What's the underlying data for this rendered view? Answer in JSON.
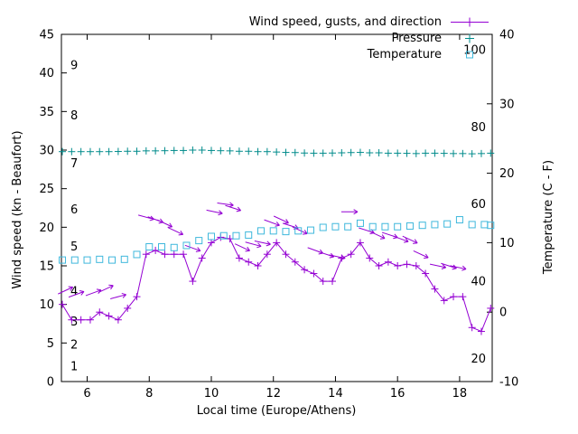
{
  "figure": {
    "background": "#ffffff",
    "frame_color": "#000000"
  },
  "chart_data": {
    "type": "line",
    "title": "",
    "x_axis": {
      "label": "Local time (Europe/Athens)",
      "range": [
        5.17,
        19.05
      ],
      "ticks": [
        6,
        8,
        10,
        12,
        14,
        16,
        18
      ]
    },
    "y_axis_left": {
      "label": "Wind speed (kn - Beaufort)",
      "range": [
        0,
        45
      ],
      "ticks": [
        0,
        5,
        10,
        15,
        20,
        25,
        30,
        35,
        40,
        45
      ]
    },
    "y_axis_right": {
      "label": "Temperature (C - F)",
      "range": [
        -10,
        40
      ],
      "ticks": [
        -10,
        0,
        10,
        20,
        30,
        40
      ]
    },
    "beaufort_scale_labels": [
      {
        "text": "1",
        "kn": 2
      },
      {
        "text": "2",
        "kn": 4.8
      },
      {
        "text": "3",
        "kn": 7.8
      },
      {
        "text": "4",
        "kn": 11.7
      },
      {
        "text": "5",
        "kn": 17.5
      },
      {
        "text": "6",
        "kn": 22.3
      },
      {
        "text": "7",
        "kn": 28.3
      },
      {
        "text": "8",
        "kn": 34.5
      },
      {
        "text": "9",
        "kn": 41
      }
    ],
    "fahrenheit_scale_labels": [
      {
        "text": "20",
        "f": 20
      },
      {
        "text": "40",
        "f": 40
      },
      {
        "text": "60",
        "f": 60
      },
      {
        "text": "80",
        "f": 80
      },
      {
        "text": "100",
        "f": 100
      }
    ],
    "legend": [
      {
        "label": "Wind speed, gusts, and direction",
        "series": "wind_speed",
        "glyph": "errorbar",
        "color": "#9400d3"
      },
      {
        "label": "Pressure",
        "series": "pressure",
        "glyph": "plus",
        "color": "#008b8b"
      },
      {
        "label": "Temperature",
        "series": "temperature",
        "glyph": "square",
        "color": "#3fb8dc"
      }
    ],
    "series": [
      {
        "name": "wind_speed",
        "axis": "left",
        "style": "line+plus",
        "color": "#9400d3",
        "points": [
          [
            5.2,
            10
          ],
          [
            5.5,
            8
          ],
          [
            5.8,
            8
          ],
          [
            6.1,
            8
          ],
          [
            6.4,
            9
          ],
          [
            6.7,
            8.5
          ],
          [
            7.0,
            8
          ],
          [
            7.3,
            9.5
          ],
          [
            7.6,
            11
          ],
          [
            7.9,
            16.5
          ],
          [
            8.2,
            17
          ],
          [
            8.5,
            16.5
          ],
          [
            8.8,
            16.5
          ],
          [
            9.1,
            16.5
          ],
          [
            9.4,
            13
          ],
          [
            9.7,
            16
          ],
          [
            10.0,
            18
          ],
          [
            10.3,
            18.7
          ],
          [
            10.6,
            18.5
          ],
          [
            10.9,
            16
          ],
          [
            11.2,
            15.5
          ],
          [
            11.5,
            15
          ],
          [
            11.8,
            16.5
          ],
          [
            12.1,
            18
          ],
          [
            12.4,
            16.5
          ],
          [
            12.7,
            15.5
          ],
          [
            13.0,
            14.5
          ],
          [
            13.3,
            14
          ],
          [
            13.6,
            13
          ],
          [
            13.9,
            13
          ],
          [
            14.2,
            16
          ],
          [
            14.5,
            16.5
          ],
          [
            14.8,
            18
          ],
          [
            15.1,
            16
          ],
          [
            15.4,
            15
          ],
          [
            15.7,
            15.5
          ],
          [
            16.0,
            15
          ],
          [
            16.3,
            15.2
          ],
          [
            16.6,
            15
          ],
          [
            16.9,
            14
          ],
          [
            17.2,
            12
          ],
          [
            17.5,
            10.5
          ],
          [
            17.8,
            11
          ],
          [
            18.1,
            11
          ],
          [
            18.4,
            7
          ],
          [
            18.7,
            6.5
          ],
          [
            19.0,
            9.5
          ]
        ]
      },
      {
        "name": "wind_gusts_direction",
        "axis": "left",
        "style": "arrow",
        "color": "#9400d3",
        "points": [
          [
            5.3,
            11.8,
            -25
          ],
          [
            5.65,
            11.3,
            -20
          ],
          [
            6.2,
            11.5,
            -20
          ],
          [
            6.6,
            12,
            -25
          ],
          [
            7.0,
            11,
            -15
          ],
          [
            7.9,
            21.3,
            15
          ],
          [
            8.2,
            21,
            20
          ],
          [
            8.5,
            20.5,
            25
          ],
          [
            8.85,
            19.5,
            25
          ],
          [
            9.4,
            17.3,
            20
          ],
          [
            10.1,
            22,
            12
          ],
          [
            10.45,
            23,
            8
          ],
          [
            10.7,
            22.5,
            18
          ],
          [
            11.0,
            17.4,
            25
          ],
          [
            11.35,
            17.8,
            15
          ],
          [
            11.65,
            18,
            12
          ],
          [
            11.95,
            20.6,
            20
          ],
          [
            12.25,
            21,
            25
          ],
          [
            12.55,
            20.2,
            18
          ],
          [
            12.85,
            19.6,
            25
          ],
          [
            13.35,
            17,
            20
          ],
          [
            13.7,
            16.5,
            18
          ],
          [
            14.05,
            16.2,
            12
          ],
          [
            14.45,
            22,
            0
          ],
          [
            15.0,
            19.6,
            18
          ],
          [
            15.35,
            19,
            25
          ],
          [
            15.75,
            19,
            18
          ],
          [
            16.1,
            18.5,
            20
          ],
          [
            16.4,
            18.4,
            25
          ],
          [
            16.75,
            16.5,
            25
          ],
          [
            17.3,
            15,
            12
          ],
          [
            17.65,
            15,
            18
          ],
          [
            17.95,
            14.8,
            12
          ]
        ]
      },
      {
        "name": "pressure",
        "axis": "left",
        "style": "plus",
        "color": "#008b8b",
        "points": [
          [
            5.2,
            29.8
          ],
          [
            5.5,
            29.8
          ],
          [
            5.8,
            29.8
          ],
          [
            6.1,
            29.8
          ],
          [
            6.4,
            29.8
          ],
          [
            6.7,
            29.8
          ],
          [
            7.0,
            29.82
          ],
          [
            7.3,
            29.85
          ],
          [
            7.6,
            29.85
          ],
          [
            7.9,
            29.9
          ],
          [
            8.2,
            29.9
          ],
          [
            8.5,
            29.92
          ],
          [
            8.8,
            29.95
          ],
          [
            9.1,
            29.95
          ],
          [
            9.4,
            30.0
          ],
          [
            9.7,
            30.0
          ],
          [
            10.0,
            29.95
          ],
          [
            10.3,
            29.92
          ],
          [
            10.6,
            29.9
          ],
          [
            10.9,
            29.85
          ],
          [
            11.2,
            29.85
          ],
          [
            11.5,
            29.8
          ],
          [
            11.8,
            29.8
          ],
          [
            12.1,
            29.75
          ],
          [
            12.4,
            29.7
          ],
          [
            12.7,
            29.68
          ],
          [
            13.0,
            29.62
          ],
          [
            13.3,
            29.6
          ],
          [
            13.6,
            29.6
          ],
          [
            13.9,
            29.62
          ],
          [
            14.2,
            29.65
          ],
          [
            14.5,
            29.68
          ],
          [
            14.8,
            29.7
          ],
          [
            15.1,
            29.65
          ],
          [
            15.4,
            29.65
          ],
          [
            15.7,
            29.6
          ],
          [
            16.0,
            29.6
          ],
          [
            16.3,
            29.58
          ],
          [
            16.6,
            29.55
          ],
          [
            16.9,
            29.6
          ],
          [
            17.2,
            29.6
          ],
          [
            17.5,
            29.58
          ],
          [
            17.8,
            29.55
          ],
          [
            18.1,
            29.55
          ],
          [
            18.4,
            29.52
          ],
          [
            18.7,
            29.55
          ],
          [
            19.0,
            29.6
          ]
        ]
      },
      {
        "name": "temperature",
        "axis": "right",
        "style": "square",
        "color": "#3fb8dc",
        "points": [
          [
            5.2,
            7.5
          ],
          [
            5.6,
            7.5
          ],
          [
            6.0,
            7.5
          ],
          [
            6.4,
            7.6
          ],
          [
            6.8,
            7.5
          ],
          [
            7.2,
            7.6
          ],
          [
            7.6,
            8.3
          ],
          [
            8.0,
            9.4
          ],
          [
            8.4,
            9.4
          ],
          [
            8.8,
            9.3
          ],
          [
            9.2,
            9.6
          ],
          [
            9.6,
            10.3
          ],
          [
            10.0,
            10.9
          ],
          [
            10.4,
            11.0
          ],
          [
            10.8,
            11.0
          ],
          [
            11.2,
            11.1
          ],
          [
            11.6,
            11.7
          ],
          [
            12.0,
            11.7
          ],
          [
            12.4,
            11.6
          ],
          [
            12.8,
            11.7
          ],
          [
            13.2,
            11.8
          ],
          [
            13.6,
            12.2
          ],
          [
            14.0,
            12.3
          ],
          [
            14.4,
            12.3
          ],
          [
            14.8,
            12.8
          ],
          [
            15.2,
            12.3
          ],
          [
            15.6,
            12.3
          ],
          [
            16.0,
            12.3
          ],
          [
            16.4,
            12.4
          ],
          [
            16.8,
            12.5
          ],
          [
            17.2,
            12.6
          ],
          [
            17.6,
            12.7
          ],
          [
            18.0,
            13.3
          ],
          [
            18.4,
            12.6
          ],
          [
            18.8,
            12.6
          ],
          [
            19.0,
            12.5
          ]
        ]
      }
    ]
  }
}
